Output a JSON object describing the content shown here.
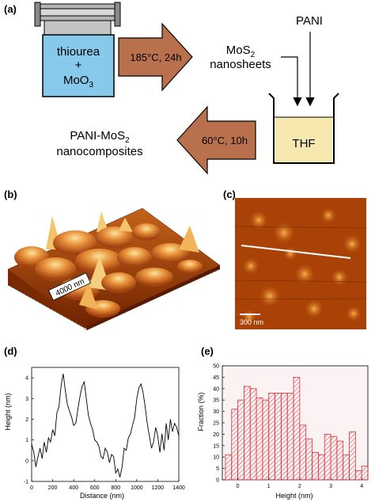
{
  "panel_labels": {
    "a": "(a)",
    "b": "(b)",
    "c": "(c)",
    "d": "(d)",
    "e": "(e)"
  },
  "scheme": {
    "autoclave": {
      "line1": "thiourea",
      "line2": "+",
      "line3_main": "MoO",
      "line3_sub": "3"
    },
    "step1_arrow": "185°C, 24h",
    "product1": {
      "main": "MoS",
      "sub": "2",
      "line2": "nanosheets"
    },
    "reagent": "PANI",
    "beaker": "THF",
    "step2_arrow": "60°C, 10h",
    "product2": {
      "prefix": "PANI-MoS",
      "sub": "2",
      "line2": "nanocomposites"
    }
  },
  "images": {
    "b_scalebar": "4000 nm",
    "c_scalebar": "300 nm"
  },
  "colors": {
    "beaker_fill": "#f7e8b0",
    "autoclave_fill": "#87c9ea",
    "arrow_fill": "#b9714d",
    "afm_dark": "#7a2a00",
    "afm_mid": "#c25a10",
    "afm_light": "#f3b24a",
    "hist_red": "#e0303a"
  },
  "chart_data": [
    {
      "type": "line",
      "panel": "d",
      "xlabel": "Distance (nm)",
      "ylabel": "Height (nm)",
      "xlim": [
        0,
        1400
      ],
      "ylim": [
        -1,
        4.5
      ],
      "xticks": [
        "0",
        "200",
        "400",
        "600",
        "800",
        "1000",
        "1200",
        "1400"
      ],
      "yticks": [
        "-1",
        "0",
        "1",
        "2",
        "3",
        "4"
      ],
      "x": [
        0,
        20,
        40,
        60,
        80,
        100,
        120,
        140,
        160,
        180,
        200,
        220,
        240,
        260,
        280,
        300,
        320,
        340,
        360,
        380,
        400,
        420,
        440,
        460,
        480,
        500,
        520,
        540,
        560,
        580,
        600,
        620,
        640,
        660,
        680,
        700,
        720,
        740,
        760,
        780,
        800,
        820,
        840,
        860,
        880,
        900,
        920,
        940,
        960,
        980,
        1000,
        1020,
        1040,
        1060,
        1080,
        1100,
        1120,
        1140,
        1160,
        1180,
        1200,
        1220,
        1240,
        1260,
        1280,
        1300,
        1320,
        1340,
        1360,
        1380,
        1400
      ],
      "y": [
        0.8,
        0.4,
        -0.3,
        0.2,
        0.6,
        0.1,
        0.9,
        0.4,
        1.1,
        0.9,
        1.5,
        1.2,
        2.3,
        2.6,
        3.6,
        4.2,
        3.4,
        2.7,
        2.4,
        2.1,
        1.7,
        1.8,
        2.5,
        3.1,
        3.6,
        3.8,
        3.0,
        2.2,
        1.8,
        1.5,
        1.0,
        0.9,
        0.7,
        0.2,
        0.1,
        0.6,
        0.4,
        -0.1,
        0.3,
        0.2,
        -0.6,
        -0.4,
        -0.8,
        -0.3,
        0.6,
        0.5,
        1.1,
        1.3,
        1.7,
        2.1,
        3.0,
        3.5,
        3.7,
        3.3,
        2.6,
        1.8,
        1.2,
        0.6,
        0.9,
        1.6,
        1.2,
        0.4,
        1.3,
        0.5,
        1.8,
        1.0,
        2.0,
        1.4,
        1.8,
        1.6,
        1.2
      ]
    },
    {
      "type": "bar",
      "panel": "e",
      "xlabel": "Height (nm)",
      "ylabel": "Fraction (%)",
      "xlim": [
        -0.5,
        4.2
      ],
      "ylim": [
        0,
        50
      ],
      "xticks": [
        "0",
        "1",
        "2",
        "3",
        "4"
      ],
      "yticks": [
        "0",
        "5",
        "10",
        "15",
        "20",
        "25",
        "30",
        "35",
        "40",
        "45",
        "50"
      ],
      "bin_width": 0.2,
      "bin_starts": [
        -0.4,
        -0.2,
        0.0,
        0.2,
        0.4,
        0.6,
        0.8,
        1.0,
        1.2,
        1.4,
        1.6,
        1.8,
        2.0,
        2.2,
        2.4,
        2.6,
        2.8,
        3.0,
        3.2,
        3.4,
        3.6,
        3.8,
        4.0
      ],
      "values": [
        11,
        31,
        35,
        41,
        40,
        36,
        35,
        38,
        38,
        38,
        38,
        45,
        24,
        18,
        12,
        11,
        20,
        19,
        17,
        11,
        21,
        4,
        6
      ]
    }
  ]
}
